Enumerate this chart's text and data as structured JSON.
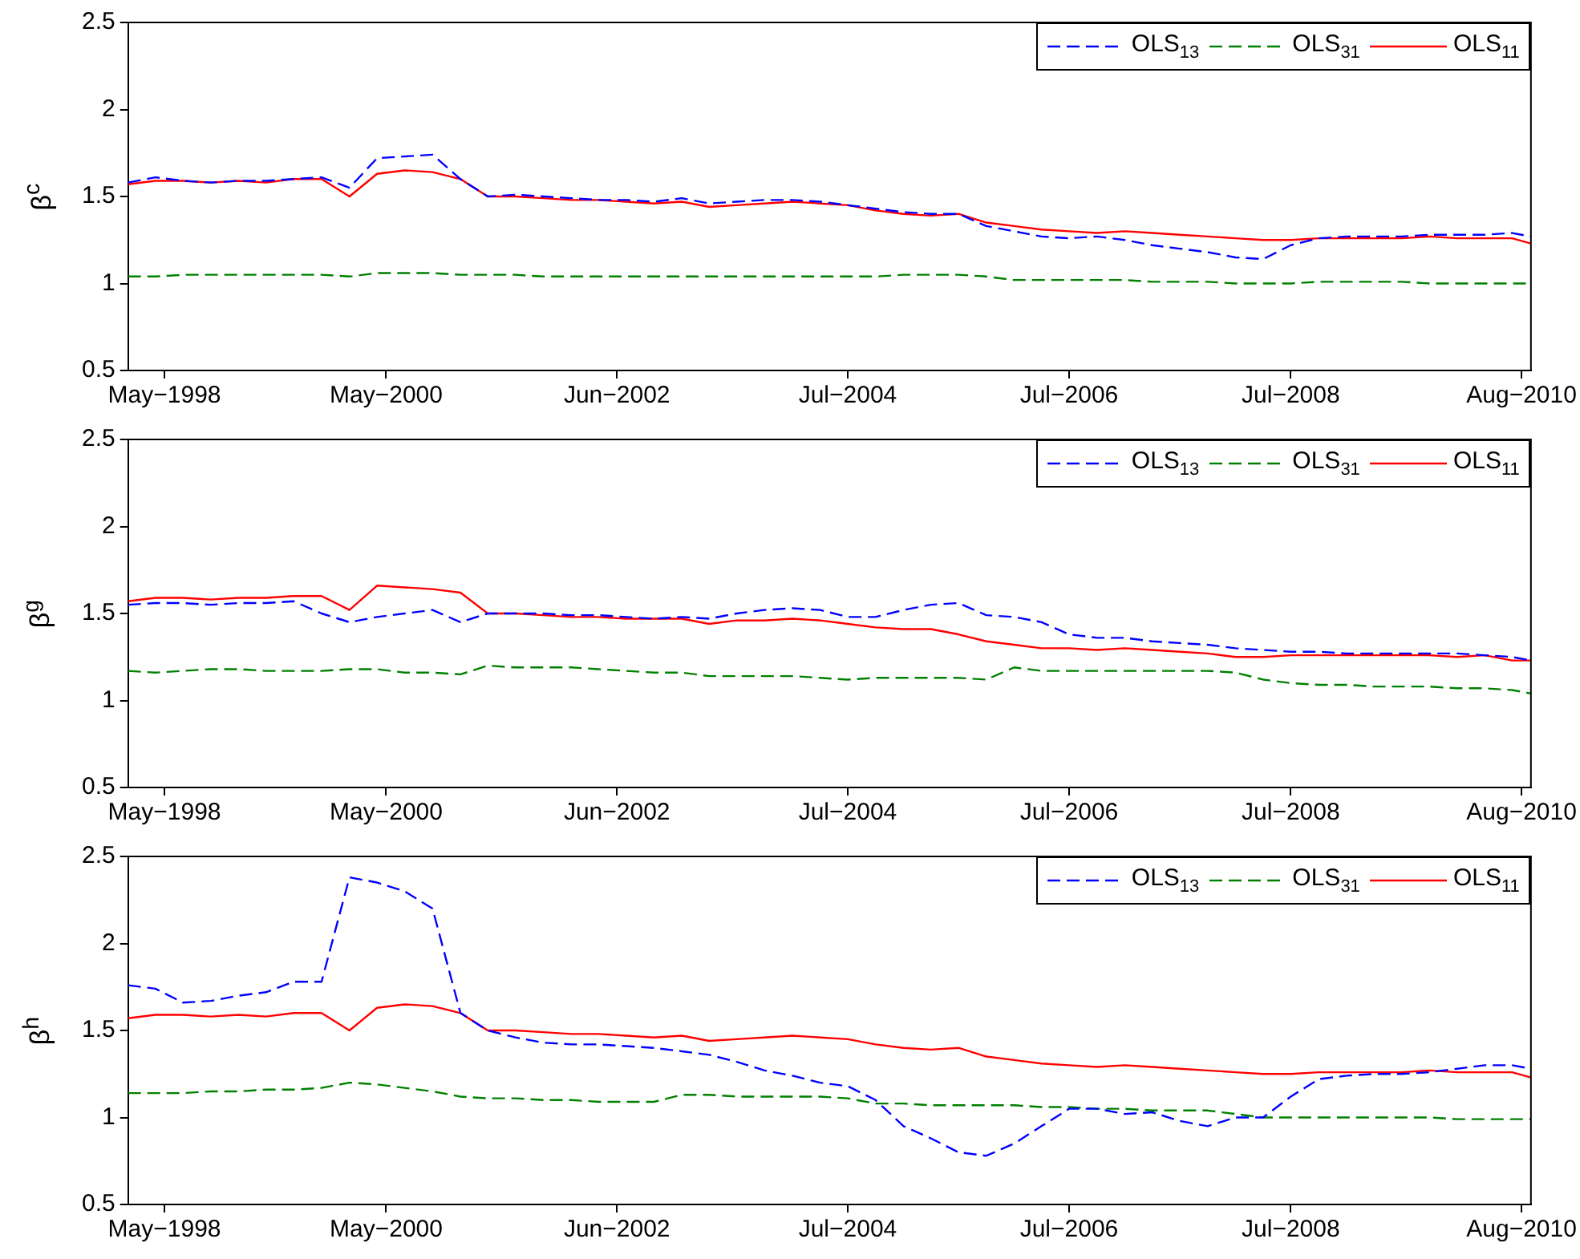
{
  "chart_data": [
    {
      "type": "line",
      "ylabel": "β$^{c}$",
      "legend": "top right",
      "xlim": [
        "1998-01",
        "2010-09"
      ],
      "xticks": [
        {
          "value": "1998-05",
          "label": "May−1998"
        },
        {
          "value": "2000-05",
          "label": "May−2000"
        },
        {
          "value": "2002-06",
          "label": "Jun−2002"
        },
        {
          "value": "2004-07",
          "label": "Jul−2004"
        },
        {
          "value": "2006-07",
          "label": "Jul−2006"
        },
        {
          "value": "2008-07",
          "label": "Jul−2008"
        },
        {
          "value": "2010-08",
          "label": "Aug−2010"
        }
      ],
      "ylim": [
        0.5,
        2.5
      ],
      "yticks": [
        0.5,
        1,
        1.5,
        2,
        2.5
      ],
      "x": [
        "1998-01",
        "1998-04",
        "1998-07",
        "1998-10",
        "1999-01",
        "1999-04",
        "1999-07",
        "1999-10",
        "2000-01",
        "2000-04",
        "2000-07",
        "2000-10",
        "2001-01",
        "2001-04",
        "2001-07",
        "2001-10",
        "2002-01",
        "2002-04",
        "2002-07",
        "2002-10",
        "2003-01",
        "2003-04",
        "2003-07",
        "2003-10",
        "2004-01",
        "2004-04",
        "2004-07",
        "2004-10",
        "2005-01",
        "2005-04",
        "2005-07",
        "2005-10",
        "2006-01",
        "2006-04",
        "2006-07",
        "2006-10",
        "2007-01",
        "2007-04",
        "2007-07",
        "2007-10",
        "2008-01",
        "2008-04",
        "2008-07",
        "2008-10",
        "2009-01",
        "2009-04",
        "2009-07",
        "2009-10",
        "2010-01",
        "2010-04",
        "2010-07",
        "2010-09"
      ],
      "series": [
        {
          "name": "OLS$_{13}$",
          "color": "#0000ff",
          "line_style": "dashed",
          "values": [
            1.58,
            1.61,
            1.59,
            1.58,
            1.59,
            1.59,
            1.6,
            1.61,
            1.55,
            1.72,
            1.73,
            1.74,
            1.6,
            1.5,
            1.51,
            1.5,
            1.49,
            1.48,
            1.48,
            1.47,
            1.49,
            1.46,
            1.47,
            1.48,
            1.48,
            1.47,
            1.45,
            1.43,
            1.41,
            1.4,
            1.4,
            1.33,
            1.3,
            1.27,
            1.26,
            1.27,
            1.25,
            1.22,
            1.2,
            1.18,
            1.15,
            1.14,
            1.22,
            1.26,
            1.27,
            1.27,
            1.27,
            1.28,
            1.28,
            1.28,
            1.29,
            1.27
          ]
        },
        {
          "name": "OLS$_{31}$",
          "color": "#008000",
          "line_style": "dashed",
          "values": [
            1.04,
            1.04,
            1.05,
            1.05,
            1.05,
            1.05,
            1.05,
            1.05,
            1.04,
            1.06,
            1.06,
            1.06,
            1.05,
            1.05,
            1.05,
            1.04,
            1.04,
            1.04,
            1.04,
            1.04,
            1.04,
            1.04,
            1.04,
            1.04,
            1.04,
            1.04,
            1.04,
            1.04,
            1.05,
            1.05,
            1.05,
            1.04,
            1.02,
            1.02,
            1.02,
            1.02,
            1.02,
            1.01,
            1.01,
            1.01,
            1.0,
            1.0,
            1.0,
            1.01,
            1.01,
            1.01,
            1.01,
            1.0,
            1.0,
            1.0,
            1.0,
            1.0
          ]
        },
        {
          "name": "OLS$_{11}$",
          "color": "#ff0000",
          "line_style": "solid",
          "values": [
            1.57,
            1.59,
            1.59,
            1.58,
            1.59,
            1.58,
            1.6,
            1.6,
            1.5,
            1.63,
            1.65,
            1.64,
            1.6,
            1.5,
            1.5,
            1.49,
            1.48,
            1.48,
            1.47,
            1.46,
            1.47,
            1.44,
            1.45,
            1.46,
            1.47,
            1.46,
            1.45,
            1.42,
            1.4,
            1.39,
            1.4,
            1.35,
            1.33,
            1.31,
            1.3,
            1.29,
            1.3,
            1.29,
            1.28,
            1.27,
            1.26,
            1.25,
            1.25,
            1.26,
            1.26,
            1.26,
            1.26,
            1.27,
            1.26,
            1.26,
            1.26,
            1.23
          ]
        }
      ]
    },
    {
      "type": "line",
      "ylabel": "β$^{g}$",
      "legend": "top right",
      "xlim": [
        "1998-01",
        "2010-09"
      ],
      "xticks": [
        {
          "value": "1998-05",
          "label": "May−1998"
        },
        {
          "value": "2000-05",
          "label": "May−2000"
        },
        {
          "value": "2002-06",
          "label": "Jun−2002"
        },
        {
          "value": "2004-07",
          "label": "Jul−2004"
        },
        {
          "value": "2006-07",
          "label": "Jul−2006"
        },
        {
          "value": "2008-07",
          "label": "Jul−2008"
        },
        {
          "value": "2010-08",
          "label": "Aug−2010"
        }
      ],
      "ylim": [
        0.5,
        2.5
      ],
      "yticks": [
        0.5,
        1,
        1.5,
        2,
        2.5
      ],
      "x": [
        "1998-01",
        "1998-04",
        "1998-07",
        "1998-10",
        "1999-01",
        "1999-04",
        "1999-07",
        "1999-10",
        "2000-01",
        "2000-04",
        "2000-07",
        "2000-10",
        "2001-01",
        "2001-04",
        "2001-07",
        "2001-10",
        "2002-01",
        "2002-04",
        "2002-07",
        "2002-10",
        "2003-01",
        "2003-04",
        "2003-07",
        "2003-10",
        "2004-01",
        "2004-04",
        "2004-07",
        "2004-10",
        "2005-01",
        "2005-04",
        "2005-07",
        "2005-10",
        "2006-01",
        "2006-04",
        "2006-07",
        "2006-10",
        "2007-01",
        "2007-04",
        "2007-07",
        "2007-10",
        "2008-01",
        "2008-04",
        "2008-07",
        "2008-10",
        "2009-01",
        "2009-04",
        "2009-07",
        "2009-10",
        "2010-01",
        "2010-04",
        "2010-07",
        "2010-09"
      ],
      "series": [
        {
          "name": "OLS$_{13}$",
          "color": "#0000ff",
          "line_style": "dashed",
          "values": [
            1.55,
            1.56,
            1.56,
            1.55,
            1.56,
            1.56,
            1.57,
            1.5,
            1.45,
            1.48,
            1.5,
            1.52,
            1.45,
            1.5,
            1.5,
            1.5,
            1.49,
            1.49,
            1.48,
            1.47,
            1.48,
            1.47,
            1.5,
            1.52,
            1.53,
            1.52,
            1.48,
            1.48,
            1.52,
            1.55,
            1.56,
            1.49,
            1.48,
            1.45,
            1.38,
            1.36,
            1.36,
            1.34,
            1.33,
            1.32,
            1.3,
            1.29,
            1.28,
            1.28,
            1.27,
            1.27,
            1.27,
            1.27,
            1.27,
            1.26,
            1.25,
            1.23
          ]
        },
        {
          "name": "OLS$_{31}$",
          "color": "#008000",
          "line_style": "dashed",
          "values": [
            1.17,
            1.16,
            1.17,
            1.18,
            1.18,
            1.17,
            1.17,
            1.17,
            1.18,
            1.18,
            1.16,
            1.16,
            1.15,
            1.2,
            1.19,
            1.19,
            1.19,
            1.18,
            1.17,
            1.16,
            1.16,
            1.14,
            1.14,
            1.14,
            1.14,
            1.13,
            1.12,
            1.13,
            1.13,
            1.13,
            1.13,
            1.12,
            1.19,
            1.17,
            1.17,
            1.17,
            1.17,
            1.17,
            1.17,
            1.17,
            1.16,
            1.12,
            1.1,
            1.09,
            1.09,
            1.08,
            1.08,
            1.08,
            1.07,
            1.07,
            1.06,
            1.04
          ]
        },
        {
          "name": "OLS$_{11}$",
          "color": "#ff0000",
          "line_style": "solid",
          "values": [
            1.57,
            1.59,
            1.59,
            1.58,
            1.59,
            1.59,
            1.6,
            1.6,
            1.52,
            1.66,
            1.65,
            1.64,
            1.62,
            1.5,
            1.5,
            1.49,
            1.48,
            1.48,
            1.47,
            1.47,
            1.47,
            1.44,
            1.46,
            1.46,
            1.47,
            1.46,
            1.44,
            1.42,
            1.41,
            1.41,
            1.38,
            1.34,
            1.32,
            1.3,
            1.3,
            1.29,
            1.3,
            1.29,
            1.28,
            1.27,
            1.25,
            1.25,
            1.26,
            1.26,
            1.26,
            1.26,
            1.26,
            1.26,
            1.25,
            1.26,
            1.23,
            1.23
          ]
        }
      ]
    },
    {
      "type": "line",
      "ylabel": "β$^{h}$",
      "legend": "top right",
      "xlim": [
        "1998-01",
        "2010-09"
      ],
      "xticks": [
        {
          "value": "1998-05",
          "label": "May−1998"
        },
        {
          "value": "2000-05",
          "label": "May−2000"
        },
        {
          "value": "2002-06",
          "label": "Jun−2002"
        },
        {
          "value": "2004-07",
          "label": "Jul−2004"
        },
        {
          "value": "2006-07",
          "label": "Jul−2006"
        },
        {
          "value": "2008-07",
          "label": "Jul−2008"
        },
        {
          "value": "2010-08",
          "label": "Aug−2010"
        }
      ],
      "ylim": [
        0.5,
        2.5
      ],
      "yticks": [
        0.5,
        1,
        1.5,
        2,
        2.5
      ],
      "x": [
        "1998-01",
        "1998-04",
        "1998-07",
        "1998-10",
        "1999-01",
        "1999-04",
        "1999-07",
        "1999-10",
        "2000-01",
        "2000-04",
        "2000-07",
        "2000-10",
        "2001-01",
        "2001-04",
        "2001-07",
        "2001-10",
        "2002-01",
        "2002-04",
        "2002-07",
        "2002-10",
        "2003-01",
        "2003-04",
        "2003-07",
        "2003-10",
        "2004-01",
        "2004-04",
        "2004-07",
        "2004-10",
        "2005-01",
        "2005-04",
        "2005-07",
        "2005-10",
        "2006-01",
        "2006-04",
        "2006-07",
        "2006-10",
        "2007-01",
        "2007-04",
        "2007-07",
        "2007-10",
        "2008-01",
        "2008-04",
        "2008-07",
        "2008-10",
        "2009-01",
        "2009-04",
        "2009-07",
        "2009-10",
        "2010-01",
        "2010-04",
        "2010-07",
        "2010-09"
      ],
      "series": [
        {
          "name": "OLS$_{13}$",
          "color": "#0000ff",
          "line_style": "dashed",
          "values": [
            1.76,
            1.74,
            1.66,
            1.67,
            1.7,
            1.72,
            1.78,
            1.78,
            2.38,
            2.35,
            2.3,
            2.2,
            1.6,
            1.5,
            1.46,
            1.43,
            1.42,
            1.42,
            1.41,
            1.4,
            1.38,
            1.36,
            1.32,
            1.27,
            1.24,
            1.2,
            1.18,
            1.1,
            0.95,
            0.88,
            0.8,
            0.78,
            0.85,
            0.95,
            1.05,
            1.05,
            1.02,
            1.03,
            0.98,
            0.95,
            1.0,
            1.0,
            1.12,
            1.22,
            1.24,
            1.25,
            1.25,
            1.26,
            1.28,
            1.3,
            1.3,
            1.28
          ]
        },
        {
          "name": "OLS$_{31}$",
          "color": "#008000",
          "line_style": "dashed",
          "values": [
            1.14,
            1.14,
            1.14,
            1.15,
            1.15,
            1.16,
            1.16,
            1.17,
            1.2,
            1.19,
            1.17,
            1.15,
            1.12,
            1.11,
            1.11,
            1.1,
            1.1,
            1.09,
            1.09,
            1.09,
            1.13,
            1.13,
            1.12,
            1.12,
            1.12,
            1.12,
            1.11,
            1.08,
            1.08,
            1.07,
            1.07,
            1.07,
            1.07,
            1.06,
            1.06,
            1.05,
            1.05,
            1.04,
            1.04,
            1.04,
            1.02,
            1.0,
            1.0,
            1.0,
            1.0,
            1.0,
            1.0,
            1.0,
            0.99,
            0.99,
            0.99,
            0.99
          ]
        },
        {
          "name": "OLS$_{11}$",
          "color": "#ff0000",
          "line_style": "solid",
          "values": [
            1.57,
            1.59,
            1.59,
            1.58,
            1.59,
            1.58,
            1.6,
            1.6,
            1.5,
            1.63,
            1.65,
            1.64,
            1.6,
            1.5,
            1.5,
            1.49,
            1.48,
            1.48,
            1.47,
            1.46,
            1.47,
            1.44,
            1.45,
            1.46,
            1.47,
            1.46,
            1.45,
            1.42,
            1.4,
            1.39,
            1.4,
            1.35,
            1.33,
            1.31,
            1.3,
            1.29,
            1.3,
            1.29,
            1.28,
            1.27,
            1.26,
            1.25,
            1.25,
            1.26,
            1.26,
            1.26,
            1.26,
            1.27,
            1.26,
            1.26,
            1.26,
            1.23
          ]
        }
      ]
    }
  ]
}
